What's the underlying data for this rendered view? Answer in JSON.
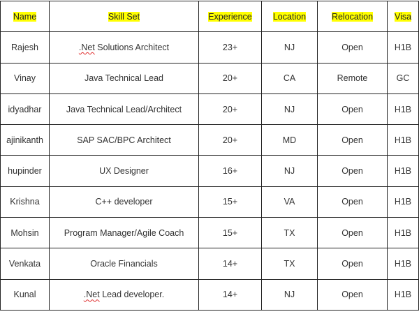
{
  "headers": [
    "Name",
    "Skill Set",
    "Experience",
    "Location",
    "Relocation",
    "Visa"
  ],
  "highlight_color": "#ffff00",
  "rows": [
    {
      "name": "Rajesh",
      "skill_prefix": ".Net",
      "skill_rest": " Solutions Architect",
      "experience": "23+",
      "location": "NJ",
      "relocation": "Open",
      "visa": "H1B"
    },
    {
      "name": "Vinay",
      "skill_prefix": "",
      "skill_rest": "Java Technical Lead",
      "experience": "20+",
      "location": "CA",
      "relocation": "Remote",
      "visa": "GC"
    },
    {
      "name": "idyadhar",
      "skill_prefix": "",
      "skill_rest": "Java Technical Lead/Architect",
      "experience": "20+",
      "location": "NJ",
      "relocation": "Open",
      "visa": "H1B"
    },
    {
      "name": "ajinikanth",
      "skill_prefix": "",
      "skill_rest": "SAP SAC/BPC Architect",
      "experience": "20+",
      "location": "MD",
      "relocation": "Open",
      "visa": "H1B"
    },
    {
      "name": "hupinder",
      "skill_prefix": "",
      "skill_rest": "UX Designer",
      "experience": "16+",
      "location": "NJ",
      "relocation": "Open",
      "visa": "H1B"
    },
    {
      "name": "Krishna",
      "skill_prefix": "",
      "skill_rest": "C++ developer",
      "experience": "15+",
      "location": "VA",
      "relocation": "Open",
      "visa": "H1B"
    },
    {
      "name": "Mohsin",
      "skill_prefix": "",
      "skill_rest": "Program Manager/Agile Coach",
      "experience": "15+",
      "location": "TX",
      "relocation": "Open",
      "visa": "H1B"
    },
    {
      "name": "Venkata",
      "skill_prefix": "",
      "skill_rest": "Oracle Financials",
      "experience": "14+",
      "location": "TX",
      "relocation": "Open",
      "visa": "H1B"
    },
    {
      "name": "Kunal",
      "skill_prefix": ".Net",
      "skill_rest": " Lead developer.",
      "experience": "14+",
      "location": "NJ",
      "relocation": "Open",
      "visa": "H1B"
    }
  ]
}
